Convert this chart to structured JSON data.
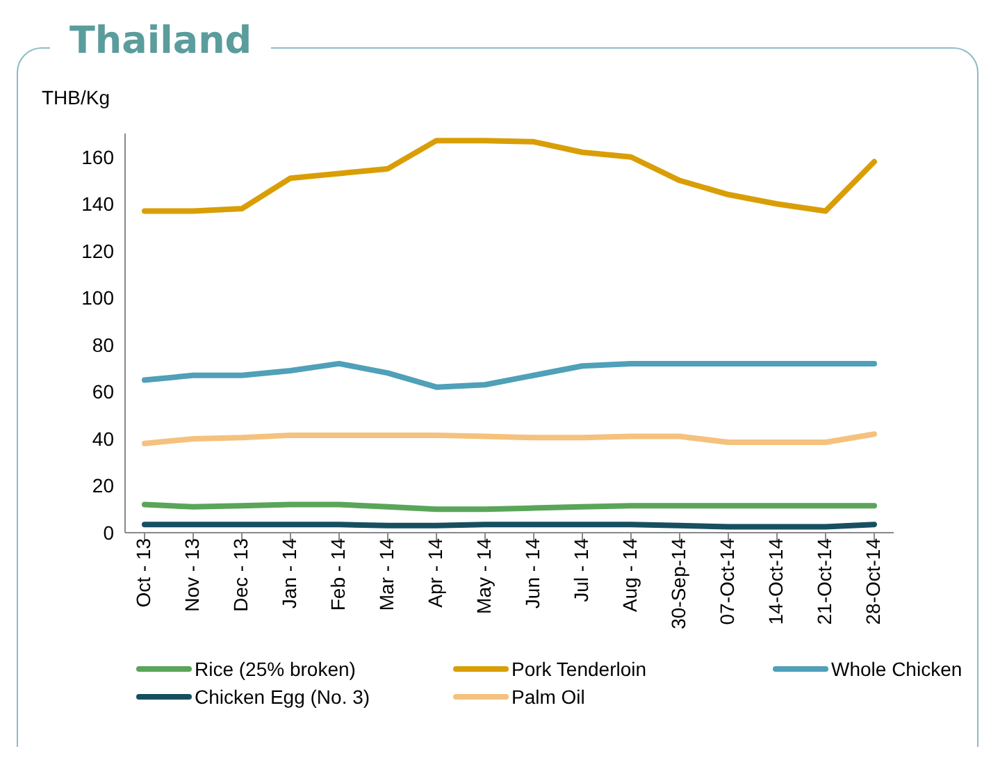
{
  "chart_data": {
    "type": "line",
    "title": "Thailand",
    "ylabel": "THB/Kg",
    "categories": [
      "Oct - 13",
      "Nov - 13",
      "Dec - 13",
      "Jan - 14",
      "Feb - 14",
      "Mar - 14",
      "Apr - 14",
      "May - 14",
      "Jun - 14",
      "Jul - 14",
      "Aug - 14",
      "30-Sep-14",
      "07-Oct-14",
      "14-Oct-14",
      "21-Oct-14",
      "28-Oct-14"
    ],
    "series": [
      {
        "name": "Rice (25% broken)",
        "color": "#5aa55a",
        "values": [
          12,
          11,
          11.5,
          12,
          12,
          11,
          10,
          10,
          10.5,
          11,
          11.5,
          11.5,
          11.5,
          11.5,
          11.5,
          11.5
        ]
      },
      {
        "name": "Pork Tenderloin",
        "color": "#d99e06",
        "values": [
          137,
          137,
          138,
          151,
          153,
          155,
          167,
          167,
          166.5,
          162,
          160,
          150,
          144,
          140,
          137,
          158
        ]
      },
      {
        "name": "Whole Chicken",
        "color": "#4fa0b8",
        "values": [
          65,
          67,
          67,
          69,
          72,
          68,
          62,
          63,
          67,
          71,
          72,
          72,
          72,
          72,
          72,
          72
        ]
      },
      {
        "name": "Chicken Egg (No. 3)",
        "color": "#174f60",
        "values": [
          3.5,
          3.5,
          3.5,
          3.5,
          3.5,
          3,
          3,
          3.5,
          3.5,
          3.5,
          3.5,
          3,
          2.5,
          2.5,
          2.5,
          3.5
        ]
      },
      {
        "name": "Palm Oil",
        "color": "#f4c27e",
        "values": [
          38,
          40,
          40.5,
          41.5,
          41.5,
          41.5,
          41.5,
          41,
          40.5,
          40.5,
          41,
          41,
          38.5,
          38.5,
          38.5,
          42
        ]
      }
    ],
    "ylim": [
      0,
      170
    ],
    "yticks": [
      0,
      20,
      40,
      60,
      80,
      100,
      120,
      140,
      160
    ],
    "grid": false,
    "legend": "bottom",
    "marker": "none",
    "line_style": "solid"
  }
}
